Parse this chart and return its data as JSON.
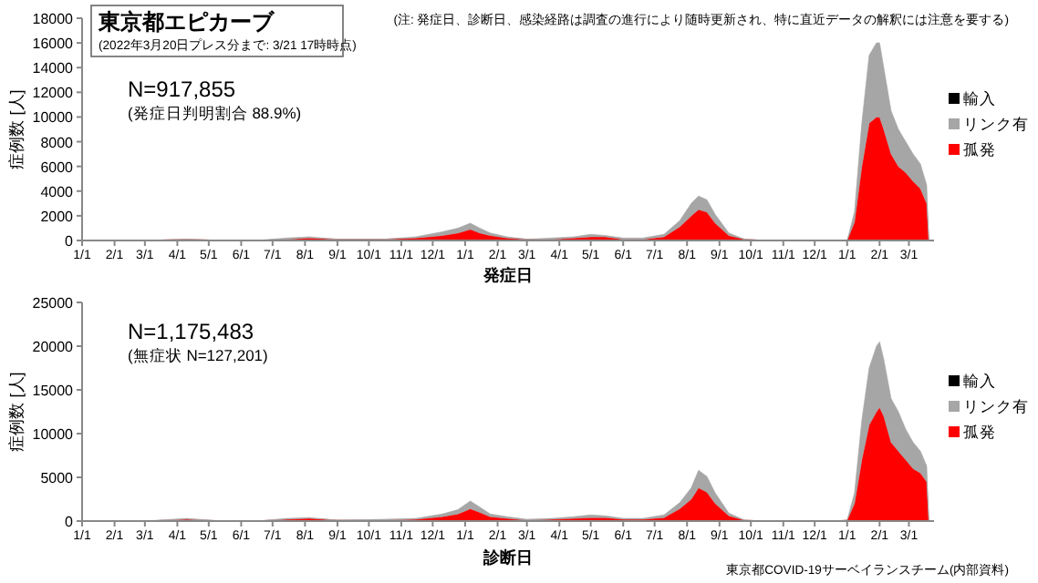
{
  "chart_data": [
    {
      "type": "area",
      "stacked": true,
      "title": "東京都エピカーブ",
      "subtitle": "(2022年3月20日プレス分まで: 3/21 17時時点)",
      "xlabel": "発症日",
      "ylabel": "症例数 [人]",
      "legend": "right",
      "grid": false,
      "annotations": [
        "(注: 発症日、診断日、感染経路は調査の進行により随時更新され、特に直近データの解釈には注意を要する)",
        "N=917,855",
        "(発症日判明割合  88.9%)"
      ],
      "x": [
        "2020-01-01",
        "2020-03-01",
        "2020-04-10",
        "2020-05-15",
        "2020-06-15",
        "2020-07-15",
        "2020-08-05",
        "2020-09-01",
        "2020-10-15",
        "2020-11-15",
        "2020-12-10",
        "2020-12-25",
        "2021-01-06",
        "2021-01-15",
        "2021-01-25",
        "2021-02-10",
        "2021-03-01",
        "2021-03-25",
        "2021-04-15",
        "2021-05-01",
        "2021-05-15",
        "2021-06-01",
        "2021-06-20",
        "2021-07-10",
        "2021-07-25",
        "2021-08-05",
        "2021-08-12",
        "2021-08-20",
        "2021-08-28",
        "2021-09-10",
        "2021-09-25",
        "2021-10-15",
        "2021-11-15",
        "2021-12-20",
        "2022-01-01",
        "2022-01-08",
        "2022-01-15",
        "2022-01-22",
        "2022-01-29",
        "2022-02-01",
        "2022-02-05",
        "2022-02-12",
        "2022-02-19",
        "2022-02-26",
        "2022-03-05",
        "2022-03-12",
        "2022-03-18",
        "2022-03-20"
      ],
      "xlim": [
        "2020-01-01",
        "2022-03-25"
      ],
      "xticks": [
        {
          "value": "2020-01-01",
          "label": "1/1"
        },
        {
          "value": "2020-02-01",
          "label": "2/1"
        },
        {
          "value": "2020-03-01",
          "label": "3/1"
        },
        {
          "value": "2020-04-01",
          "label": "4/1"
        },
        {
          "value": "2020-05-01",
          "label": "5/1"
        },
        {
          "value": "2020-06-01",
          "label": "6/1"
        },
        {
          "value": "2020-07-01",
          "label": "7/1"
        },
        {
          "value": "2020-08-01",
          "label": "8/1"
        },
        {
          "value": "2020-09-01",
          "label": "9/1"
        },
        {
          "value": "2020-10-01",
          "label": "10/1"
        },
        {
          "value": "2020-11-01",
          "label": "11/1"
        },
        {
          "value": "2020-12-01",
          "label": "12/1"
        },
        {
          "value": "2021-01-01",
          "label": "1/1"
        },
        {
          "value": "2021-02-01",
          "label": "2/1"
        },
        {
          "value": "2021-03-01",
          "label": "3/1"
        },
        {
          "value": "2021-04-01",
          "label": "4/1"
        },
        {
          "value": "2021-05-01",
          "label": "5/1"
        },
        {
          "value": "2021-06-01",
          "label": "6/1"
        },
        {
          "value": "2021-07-01",
          "label": "7/1"
        },
        {
          "value": "2021-08-01",
          "label": "8/1"
        },
        {
          "value": "2021-09-01",
          "label": "9/1"
        },
        {
          "value": "2021-10-01",
          "label": "10/1"
        },
        {
          "value": "2021-11-01",
          "label": "11/1"
        },
        {
          "value": "2021-12-01",
          "label": "12/1"
        },
        {
          "value": "2022-01-01",
          "label": "1/1"
        },
        {
          "value": "2022-02-01",
          "label": "2/1"
        },
        {
          "value": "2022-03-01",
          "label": "3/1"
        }
      ],
      "ylim": [
        0,
        18000
      ],
      "yticks": [
        0,
        2000,
        4000,
        6000,
        8000,
        10000,
        12000,
        14000,
        16000,
        18000
      ],
      "series": [
        {
          "name": "孤発",
          "color": "#ff0000",
          "values": [
            0,
            0,
            100,
            0,
            0,
            100,
            200,
            100,
            100,
            200,
            400,
            600,
            900,
            600,
            400,
            200,
            100,
            100,
            200,
            300,
            300,
            100,
            100,
            300,
            1100,
            2000,
            2500,
            2300,
            1400,
            400,
            100,
            0,
            0,
            0,
            0,
            1500,
            6000,
            9500,
            10000,
            10000,
            9000,
            7000,
            6000,
            5500,
            4800,
            4200,
            3000,
            0
          ]
        },
        {
          "name": "リンク有",
          "color": "#a6a6a6",
          "values": [
            0,
            0,
            0,
            0,
            0,
            100,
            100,
            0,
            0,
            100,
            300,
            400,
            500,
            400,
            200,
            100,
            0,
            100,
            100,
            200,
            100,
            100,
            100,
            200,
            500,
            1000,
            1100,
            1000,
            700,
            200,
            0,
            0,
            0,
            0,
            0,
            800,
            3500,
            5500,
            6000,
            6000,
            5000,
            3500,
            3000,
            2500,
            2200,
            2000,
            1500,
            0
          ]
        },
        {
          "name": "輸入",
          "color": "#000000",
          "values": [
            null,
            null,
            null,
            null,
            null,
            null,
            null,
            null,
            null,
            null,
            null,
            null,
            null,
            null,
            null,
            null,
            null,
            null,
            null,
            null,
            null,
            null,
            null,
            null,
            null,
            null,
            null,
            null,
            null,
            null,
            null,
            null,
            null,
            null,
            null,
            null,
            null,
            null,
            null,
            null,
            null,
            null,
            null,
            null,
            null,
            null,
            null,
            null
          ]
        }
      ]
    },
    {
      "type": "area",
      "stacked": true,
      "xlabel": "診断日",
      "ylabel": "症例数 [人]",
      "legend": "right",
      "grid": false,
      "annotations": [
        "N=1,175,483",
        "(無症状  N=127,201)",
        "東京都COVID-19サーベイランスチーム(内部資料)"
      ],
      "x": [
        "2020-01-01",
        "2020-03-01",
        "2020-04-10",
        "2020-05-15",
        "2020-06-15",
        "2020-07-15",
        "2020-08-05",
        "2020-09-01",
        "2020-10-15",
        "2020-11-15",
        "2020-12-10",
        "2020-12-25",
        "2021-01-06",
        "2021-01-15",
        "2021-01-25",
        "2021-02-10",
        "2021-03-01",
        "2021-03-25",
        "2021-04-15",
        "2021-05-01",
        "2021-05-15",
        "2021-06-01",
        "2021-06-20",
        "2021-07-10",
        "2021-07-25",
        "2021-08-05",
        "2021-08-12",
        "2021-08-20",
        "2021-08-28",
        "2021-09-10",
        "2021-09-25",
        "2021-10-15",
        "2021-11-15",
        "2021-12-20",
        "2022-01-01",
        "2022-01-08",
        "2022-01-15",
        "2022-01-22",
        "2022-01-29",
        "2022-02-01",
        "2022-02-05",
        "2022-02-12",
        "2022-02-19",
        "2022-02-26",
        "2022-03-05",
        "2022-03-12",
        "2022-03-18",
        "2022-03-20"
      ],
      "xlim": [
        "2020-01-01",
        "2022-03-25"
      ],
      "xticks": [
        {
          "value": "2020-01-01",
          "label": "1/1"
        },
        {
          "value": "2020-02-01",
          "label": "2/1"
        },
        {
          "value": "2020-03-01",
          "label": "3/1"
        },
        {
          "value": "2020-04-01",
          "label": "4/1"
        },
        {
          "value": "2020-05-01",
          "label": "5/1"
        },
        {
          "value": "2020-06-01",
          "label": "6/1"
        },
        {
          "value": "2020-07-01",
          "label": "7/1"
        },
        {
          "value": "2020-08-01",
          "label": "8/1"
        },
        {
          "value": "2020-09-01",
          "label": "9/1"
        },
        {
          "value": "2020-10-01",
          "label": "10/1"
        },
        {
          "value": "2020-11-01",
          "label": "11/1"
        },
        {
          "value": "2020-12-01",
          "label": "12/1"
        },
        {
          "value": "2021-01-01",
          "label": "1/1"
        },
        {
          "value": "2021-02-01",
          "label": "2/1"
        },
        {
          "value": "2021-03-01",
          "label": "3/1"
        },
        {
          "value": "2021-04-01",
          "label": "4/1"
        },
        {
          "value": "2021-05-01",
          "label": "5/1"
        },
        {
          "value": "2021-06-01",
          "label": "6/1"
        },
        {
          "value": "2021-07-01",
          "label": "7/1"
        },
        {
          "value": "2021-08-01",
          "label": "8/1"
        },
        {
          "value": "2021-09-01",
          "label": "9/1"
        },
        {
          "value": "2021-10-01",
          "label": "10/1"
        },
        {
          "value": "2021-11-01",
          "label": "11/1"
        },
        {
          "value": "2021-12-01",
          "label": "12/1"
        },
        {
          "value": "2022-01-01",
          "label": "1/1"
        },
        {
          "value": "2022-02-01",
          "label": "2/1"
        },
        {
          "value": "2022-03-01",
          "label": "3/1"
        }
      ],
      "ylim": [
        0,
        25000
      ],
      "yticks": [
        0,
        5000,
        10000,
        15000,
        20000,
        25000
      ],
      "series": [
        {
          "name": "孤発",
          "color": "#ff0000",
          "values": [
            0,
            0,
            200,
            0,
            0,
            200,
            300,
            100,
            100,
            200,
            500,
            800,
            1400,
            1000,
            500,
            300,
            100,
            200,
            300,
            400,
            400,
            200,
            200,
            400,
            1400,
            2500,
            3800,
            3300,
            2000,
            600,
            100,
            0,
            0,
            0,
            100,
            2000,
            7000,
            11000,
            12500,
            13000,
            12000,
            9000,
            8000,
            7000,
            6000,
            5500,
            4500,
            0
          ]
        },
        {
          "name": "リンク有",
          "color": "#a6a6a6",
          "values": [
            0,
            0,
            100,
            0,
            0,
            100,
            100,
            0,
            100,
            100,
            300,
            500,
            900,
            600,
            300,
            200,
            100,
            100,
            200,
            300,
            200,
            100,
            100,
            300,
            700,
            1300,
            2000,
            1800,
            1200,
            300,
            0,
            0,
            0,
            0,
            0,
            1200,
            4500,
            6500,
            7500,
            7500,
            6500,
            5000,
            4500,
            3500,
            3000,
            2500,
            1800,
            0
          ]
        },
        {
          "name": "輸入",
          "color": "#000000",
          "values": [
            null,
            null,
            null,
            null,
            null,
            null,
            null,
            null,
            null,
            null,
            null,
            null,
            null,
            null,
            null,
            null,
            null,
            null,
            null,
            null,
            null,
            null,
            null,
            null,
            null,
            null,
            null,
            null,
            null,
            null,
            null,
            null,
            null,
            null,
            null,
            null,
            null,
            null,
            null,
            null,
            null,
            null,
            null,
            null,
            null,
            null,
            null,
            null
          ]
        }
      ]
    }
  ]
}
